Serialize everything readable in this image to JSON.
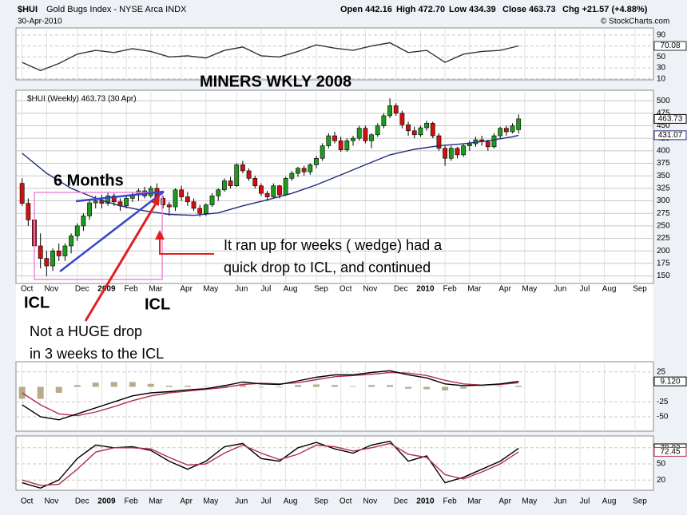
{
  "header": {
    "symbol": "$HUI",
    "name": "Gold Bugs Index - NYSE Arca INDX",
    "date": "30-Apr-2010",
    "quote": [
      "Open 442.16",
      "High 472.70",
      "Low 434.39",
      "Close 463.73",
      "Chg +21.57 (+4.88%)"
    ],
    "credit": "© StockCharts.com"
  },
  "annotations": {
    "title": "MINERS WKLY 2008",
    "period": "6 Months",
    "icl_left": "ICL",
    "icl_right": "ICL",
    "note_blue": [
      "It ran up for weeks ( wedge) had a",
      "quick drop to ICL,  and continued"
    ],
    "note_red": [
      "Not a HUGE drop",
      "in 3 weeks  to the ICL"
    ]
  },
  "chart_data": [
    {
      "type": "line",
      "ylim": [
        8,
        103
      ],
      "yticks": [
        90,
        70,
        50,
        30,
        10
      ],
      "series": [
        {
          "color": "#333333",
          "tagged": true,
          "x": [
            0,
            3,
            6,
            9,
            12,
            15,
            18,
            21,
            24,
            27,
            30,
            33,
            36,
            39,
            42,
            45,
            48,
            51,
            54,
            57,
            60,
            63,
            66,
            69,
            72,
            75,
            78,
            81
          ],
          "values": [
            40,
            25,
            38,
            55,
            62,
            58,
            65,
            60,
            50,
            52,
            48,
            62,
            68,
            52,
            50,
            60,
            72,
            66,
            62,
            70,
            76,
            58,
            62,
            40,
            55,
            60,
            62,
            70.08
          ]
        }
      ]
    },
    {
      "type": "candlestick",
      "legend": "$HUI (Weekly) 463.73 (30 Apr)",
      "tagged": true,
      "up_color": "#1e9a1e",
      "down_color": "#d01010",
      "xlim": [
        -1,
        103
      ],
      "xticks": [
        {
          "value": 0,
          "label": "Oct"
        },
        {
          "value": 4,
          "label": "Nov"
        },
        {
          "value": 9,
          "label": "Dec"
        },
        {
          "value": 13,
          "label": "2009"
        },
        {
          "value": 17,
          "label": "Feb"
        },
        {
          "value": 21,
          "label": "Mar"
        },
        {
          "value": 26,
          "label": "Apr"
        },
        {
          "value": 30,
          "label": "May"
        },
        {
          "value": 35,
          "label": "Jun"
        },
        {
          "value": 39,
          "label": "Jul"
        },
        {
          "value": 43,
          "label": "Aug"
        },
        {
          "value": 48,
          "label": "Sep"
        },
        {
          "value": 52,
          "label": "Oct"
        },
        {
          "value": 56,
          "label": "Nov"
        },
        {
          "value": 61,
          "label": "Dec"
        },
        {
          "value": 65,
          "label": "2010"
        },
        {
          "value": 69,
          "label": "Feb"
        },
        {
          "value": 73,
          "label": "Mar"
        },
        {
          "value": 78,
          "label": "Apr"
        },
        {
          "value": 82,
          "label": "May"
        },
        {
          "value": 87,
          "label": "Jun"
        },
        {
          "value": 91,
          "label": "Jul"
        },
        {
          "value": 95,
          "label": "Aug"
        },
        {
          "value": 100,
          "label": "Sep"
        }
      ],
      "ylim": [
        135,
        521
      ],
      "yticks": [
        150,
        175,
        200,
        225,
        250,
        275,
        300,
        325,
        350,
        375,
        400,
        425,
        450,
        475,
        500
      ],
      "x": [
        0,
        1,
        2,
        3,
        4,
        5,
        6,
        7,
        8,
        9,
        10,
        11,
        12,
        13,
        14,
        15,
        16,
        17,
        18,
        19,
        20,
        21,
        22,
        23,
        24,
        25,
        26,
        27,
        28,
        29,
        30,
        31,
        32,
        33,
        34,
        35,
        36,
        37,
        38,
        39,
        40,
        41,
        42,
        43,
        44,
        45,
        46,
        47,
        48,
        49,
        50,
        51,
        52,
        53,
        54,
        55,
        56,
        57,
        58,
        59,
        60,
        61,
        62,
        63,
        64,
        65,
        66,
        67,
        68,
        69,
        70,
        71,
        72,
        73,
        74,
        75,
        76,
        77,
        78,
        79,
        80,
        81
      ],
      "ohlc": [
        [
          335,
          345,
          290,
          295
        ],
        [
          295,
          305,
          250,
          262
        ],
        [
          262,
          285,
          200,
          210
        ],
        [
          210,
          235,
          165,
          185
        ],
        [
          185,
          200,
          150,
          170
        ],
        [
          170,
          205,
          160,
          200
        ],
        [
          200,
          215,
          180,
          190
        ],
        [
          190,
          215,
          180,
          210
        ],
        [
          210,
          235,
          195,
          230
        ],
        [
          230,
          255,
          220,
          250
        ],
        [
          250,
          275,
          240,
          270
        ],
        [
          270,
          300,
          262,
          296
        ],
        [
          296,
          310,
          285,
          300
        ],
        [
          300,
          312,
          285,
          295
        ],
        [
          295,
          318,
          290,
          310
        ],
        [
          310,
          315,
          290,
          298
        ],
        [
          298,
          305,
          280,
          290
        ],
        [
          290,
          310,
          285,
          305
        ],
        [
          305,
          318,
          298,
          312
        ],
        [
          312,
          325,
          300,
          320
        ],
        [
          320,
          328,
          305,
          310
        ],
        [
          310,
          330,
          306,
          325
        ],
        [
          325,
          335,
          300,
          305
        ],
        [
          305,
          310,
          285,
          292
        ],
        [
          292,
          298,
          270,
          288
        ],
        [
          288,
          325,
          280,
          322
        ],
        [
          322,
          330,
          300,
          308
        ],
        [
          308,
          318,
          290,
          298
        ],
        [
          298,
          305,
          280,
          285
        ],
        [
          285,
          292,
          268,
          275
        ],
        [
          275,
          295,
          270,
          292
        ],
        [
          292,
          315,
          288,
          310
        ],
        [
          310,
          325,
          300,
          322
        ],
        [
          322,
          345,
          318,
          340
        ],
        [
          340,
          348,
          325,
          330
        ],
        [
          330,
          375,
          328,
          372
        ],
        [
          372,
          380,
          355,
          360
        ],
        [
          360,
          365,
          340,
          345
        ],
        [
          345,
          350,
          325,
          330
        ],
        [
          330,
          335,
          310,
          315
        ],
        [
          315,
          320,
          300,
          308
        ],
        [
          308,
          335,
          305,
          330
        ],
        [
          330,
          332,
          305,
          312
        ],
        [
          312,
          348,
          310,
          345
        ],
        [
          345,
          360,
          340,
          355
        ],
        [
          355,
          368,
          348,
          365
        ],
        [
          365,
          370,
          350,
          358
        ],
        [
          358,
          375,
          352,
          372
        ],
        [
          372,
          390,
          365,
          385
        ],
        [
          385,
          415,
          380,
          410
        ],
        [
          410,
          435,
          405,
          430
        ],
        [
          430,
          438,
          415,
          420
        ],
        [
          420,
          428,
          398,
          402
        ],
        [
          402,
          425,
          398,
          420
        ],
        [
          420,
          430,
          410,
          425
        ],
        [
          425,
          450,
          420,
          445
        ],
        [
          445,
          450,
          415,
          420
        ],
        [
          420,
          435,
          405,
          432
        ],
        [
          432,
          455,
          428,
          450
        ],
        [
          450,
          475,
          445,
          470
        ],
        [
          470,
          505,
          465,
          490
        ],
        [
          490,
          495,
          470,
          475
        ],
        [
          475,
          480,
          445,
          452
        ],
        [
          452,
          458,
          430,
          440
        ],
        [
          440,
          448,
          425,
          432
        ],
        [
          432,
          450,
          428,
          446
        ],
        [
          446,
          460,
          440,
          455
        ],
        [
          455,
          458,
          425,
          430
        ],
        [
          430,
          435,
          400,
          405
        ],
        [
          405,
          410,
          370,
          385
        ],
        [
          385,
          410,
          380,
          405
        ],
        [
          405,
          408,
          385,
          392
        ],
        [
          392,
          415,
          388,
          410
        ],
        [
          410,
          420,
          400,
          414
        ],
        [
          414,
          428,
          408,
          422
        ],
        [
          422,
          430,
          410,
          418
        ],
        [
          418,
          422,
          400,
          408
        ],
        [
          408,
          435,
          405,
          430
        ],
        [
          430,
          448,
          425,
          445
        ],
        [
          445,
          450,
          430,
          438
        ],
        [
          438,
          455,
          435,
          450
        ],
        [
          442.16,
          472.7,
          434.39,
          463.73
        ]
      ],
      "series": [
        {
          "color": "#1f2a7a",
          "tagged": true,
          "x": [
            0,
            4,
            8,
            12,
            16,
            20,
            24,
            28,
            32,
            36,
            40,
            44,
            48,
            52,
            56,
            60,
            64,
            68,
            72,
            76,
            80,
            81
          ],
          "values": [
            395,
            355,
            325,
            305,
            290,
            280,
            273,
            271,
            276,
            290,
            302,
            315,
            332,
            352,
            372,
            392,
            403,
            410,
            414,
            420,
            428,
            431.07
          ]
        }
      ]
    },
    {
      "type": "line",
      "ylim": [
        -74,
        42
      ],
      "yticks": [
        25,
        -25,
        -50
      ],
      "series": [
        {
          "type": "bar",
          "color": "#b9aa8c",
          "x": [
            0,
            3,
            6,
            9,
            12,
            15,
            18,
            21,
            24,
            27,
            30,
            33,
            36,
            39,
            42,
            45,
            48,
            51,
            54,
            57,
            60,
            63,
            66,
            69,
            72,
            75,
            78,
            81
          ],
          "values": [
            -20,
            -20,
            -10,
            3,
            7,
            8,
            8,
            5,
            2,
            2,
            1,
            3,
            4,
            -1,
            -1,
            3,
            4,
            3,
            1,
            3,
            3,
            -3,
            -4,
            -6,
            -3,
            0,
            1,
            2
          ]
        },
        {
          "color": "#b03050",
          "x": [
            0,
            3,
            6,
            9,
            12,
            15,
            18,
            21,
            24,
            27,
            30,
            33,
            36,
            39,
            42,
            45,
            48,
            51,
            54,
            57,
            60,
            63,
            66,
            69,
            72,
            75,
            78,
            81
          ],
          "values": [
            -10,
            -30,
            -45,
            -48,
            -42,
            -33,
            -23,
            -15,
            -10,
            -7,
            -4,
            -1,
            4,
            6,
            5,
            7,
            12,
            17,
            19,
            21,
            24,
            23,
            19,
            11,
            5,
            3,
            4,
            7
          ]
        },
        {
          "color": "#000000",
          "tagged": true,
          "x": [
            0,
            3,
            6,
            9,
            12,
            15,
            18,
            21,
            24,
            27,
            30,
            33,
            36,
            39,
            42,
            45,
            48,
            51,
            54,
            57,
            60,
            63,
            66,
            69,
            72,
            75,
            78,
            81
          ],
          "values": [
            -30,
            -50,
            -55,
            -45,
            -35,
            -25,
            -15,
            -10,
            -8,
            -5,
            -3,
            2,
            8,
            5,
            4,
            10,
            16,
            20,
            20,
            24,
            27,
            20,
            15,
            5,
            2,
            3,
            5,
            9.12
          ],
          "value_labels": [
            null,
            null,
            null,
            null,
            null,
            null,
            null,
            null,
            null,
            null,
            null,
            null,
            null,
            null,
            null,
            null,
            null,
            null,
            null,
            null,
            null,
            null,
            null,
            null,
            null,
            null,
            null,
            "9.120"
          ]
        }
      ]
    },
    {
      "type": "line",
      "ylim": [
        1,
        102
      ],
      "yticks": [
        80,
        50,
        20
      ],
      "series": [
        {
          "color": "#000000",
          "tagged": true,
          "x": [
            0,
            3,
            6,
            9,
            12,
            15,
            18,
            21,
            24,
            27,
            30,
            33,
            36,
            39,
            42,
            45,
            48,
            51,
            54,
            57,
            60,
            63,
            66,
            69,
            72,
            75,
            78,
            81
          ],
          "values": [
            15,
            5,
            20,
            60,
            85,
            80,
            82,
            75,
            55,
            40,
            55,
            82,
            88,
            60,
            55,
            80,
            90,
            78,
            70,
            85,
            92,
            55,
            65,
            15,
            25,
            40,
            55,
            79.03
          ]
        },
        {
          "color": "#b03050",
          "tagged": true,
          "x": [
            0,
            3,
            6,
            9,
            12,
            15,
            18,
            21,
            24,
            27,
            30,
            33,
            36,
            39,
            42,
            45,
            48,
            51,
            54,
            57,
            60,
            63,
            66,
            69,
            72,
            75,
            78,
            81
          ],
          "values": [
            20,
            10,
            12,
            40,
            72,
            80,
            80,
            78,
            62,
            48,
            50,
            70,
            85,
            70,
            58,
            68,
            85,
            82,
            74,
            80,
            88,
            68,
            62,
            30,
            22,
            35,
            50,
            72.45
          ]
        }
      ]
    }
  ]
}
